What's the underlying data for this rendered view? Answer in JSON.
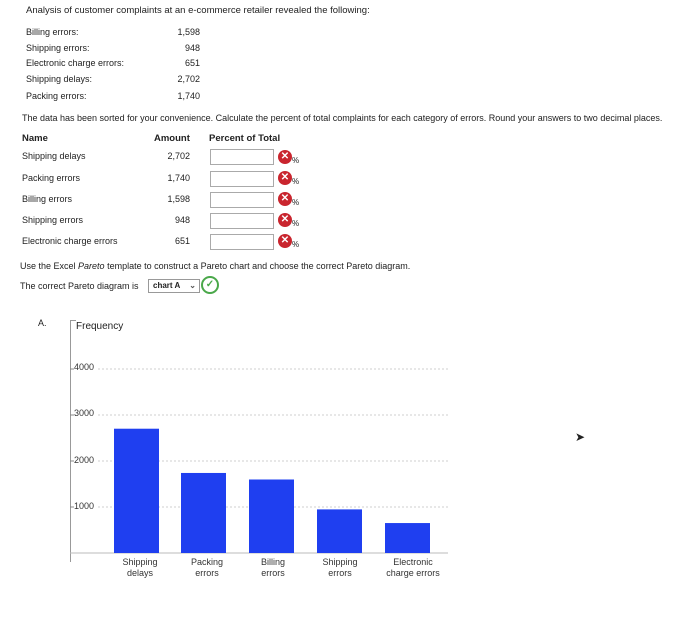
{
  "intro": "Analysis of customer complaints at an e-commerce retailer revealed the following:",
  "errors": [
    {
      "label": "Billing errors:",
      "value": "1,598"
    },
    {
      "label": "Shipping errors:",
      "value": "948"
    },
    {
      "label": "Electronic charge errors:",
      "value": "651"
    },
    {
      "label": "Shipping delays:",
      "value": "2,702"
    },
    {
      "label": "Packing errors:",
      "value": "1,740"
    }
  ],
  "instructions": "The data has been sorted for your convenience. Calculate the percent of total complaints for each category of errors. Round your answers to two decimal places.",
  "table": {
    "headers": {
      "name": "Name",
      "amount": "Amount",
      "percent": "Percent of Total"
    },
    "pct_symbol": "%",
    "rows": [
      {
        "name": "Shipping delays",
        "amount": "2,702"
      },
      {
        "name": "Packing errors",
        "amount": "1,740"
      },
      {
        "name": "Billing errors",
        "amount": "1,598"
      },
      {
        "name": "Shipping errors",
        "amount": "948"
      },
      {
        "name": "Electronic charge errors",
        "amount": "651"
      }
    ]
  },
  "pareto_instruction_parts": [
    "Use the Excel ",
    "Pareto",
    " template to construct a Pareto chart and choose the correct Pareto diagram."
  ],
  "correct_label": "The correct Pareto diagram is",
  "dropdown_value": "chart A",
  "chart_letter": "A.",
  "chart_data": {
    "type": "bar",
    "ylabel": "Frequency",
    "categories": [
      "Shipping delays",
      "Packing errors",
      "Billing errors",
      "Shipping errors",
      "Electronic charge errors"
    ],
    "category_lines": [
      [
        "Shipping",
        "delays"
      ],
      [
        "Packing",
        "errors"
      ],
      [
        "Billing",
        "errors"
      ],
      [
        "Shipping",
        "errors"
      ],
      [
        "Electronic",
        "charge errors"
      ]
    ],
    "values": [
      2702,
      1740,
      1598,
      948,
      651
    ],
    "yticks": [
      "1000",
      "2000",
      "3000",
      "4000"
    ],
    "ylim": [
      0,
      4500
    ],
    "bar_color": "#1f3ff0",
    "grid": true
  },
  "colors": {
    "error": "#c9252e",
    "success": "#4aa84a"
  },
  "icons": {
    "error": "x-circle-icon",
    "success": "check-circle-icon"
  }
}
